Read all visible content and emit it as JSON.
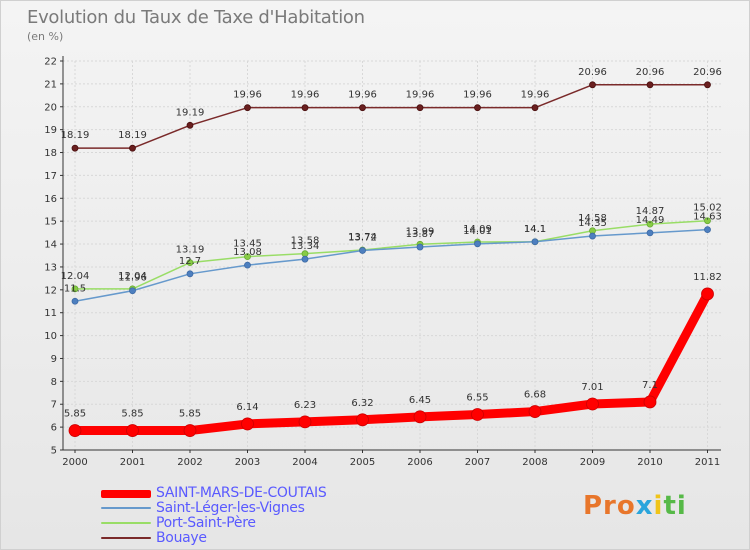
{
  "title": "Evolution du Taux de Taxe d'Habitation",
  "unit": "(en %)",
  "logo": {
    "text": "Proxiti",
    "parts": [
      "Pro",
      "x",
      "i",
      "ti"
    ]
  },
  "chart_data": {
    "type": "line",
    "x": [
      "2000",
      "2001",
      "2002",
      "2003",
      "2004",
      "2005",
      "2006",
      "2007",
      "2008",
      "2009",
      "2010",
      "2011"
    ],
    "ylim": [
      5,
      22
    ],
    "yticks": [
      "5",
      "6",
      "7",
      "8",
      "9",
      "10",
      "11",
      "12",
      "13",
      "14",
      "15",
      "16",
      "17",
      "18",
      "19",
      "20",
      "21",
      "22"
    ],
    "grid": true,
    "legend_position": "bottom-left",
    "series": [
      {
        "name": "SAINT-MARS-DE-COUTAIS",
        "color": "#ff0000",
        "values": [
          5.85,
          5.85,
          5.85,
          6.14,
          6.23,
          6.32,
          6.45,
          6.55,
          6.68,
          7.01,
          7.1,
          11.82
        ],
        "labels": [
          "5.85",
          "5.85",
          "5.85",
          "6.14",
          "6.23",
          "6.32",
          "6.45",
          "6.55",
          "6.68",
          "7.01",
          "7.1",
          "11.82"
        ]
      },
      {
        "name": "Saint-Léger-les-Vignes",
        "color": "#6699cc",
        "values": [
          11.5,
          11.96,
          12.7,
          13.08,
          13.34,
          13.72,
          13.87,
          14.01,
          14.1,
          14.35,
          14.49,
          14.63
        ],
        "labels": [
          "11.5",
          "11.96",
          "12.7",
          "13.08",
          "13.34",
          "13.72",
          "13.87",
          "14.01",
          "14.1",
          "14.35",
          "14.49",
          "14.63"
        ]
      },
      {
        "name": "Port-Saint-Père",
        "color": "#99dd66",
        "values": [
          12.04,
          12.04,
          13.19,
          13.45,
          13.58,
          13.74,
          13.99,
          14.09,
          14.1,
          14.58,
          14.87,
          15.02
        ],
        "labels": [
          "12.04",
          "12.04",
          "13.19",
          "13.45",
          "13.58",
          "13.74",
          "13.99",
          "14.09",
          "14.1",
          "14.58",
          "14.87",
          "15.02"
        ]
      },
      {
        "name": "Bouaye",
        "color": "#7a2a2a",
        "values": [
          18.19,
          18.19,
          19.19,
          19.96,
          19.96,
          19.96,
          19.96,
          19.96,
          19.96,
          20.96,
          20.96,
          20.96
        ],
        "labels": [
          "18.19",
          "18.19",
          "19.19",
          "19.96",
          "19.96",
          "19.96",
          "19.96",
          "19.96",
          "19.96",
          "20.96",
          "20.96",
          "20.96"
        ]
      }
    ]
  }
}
